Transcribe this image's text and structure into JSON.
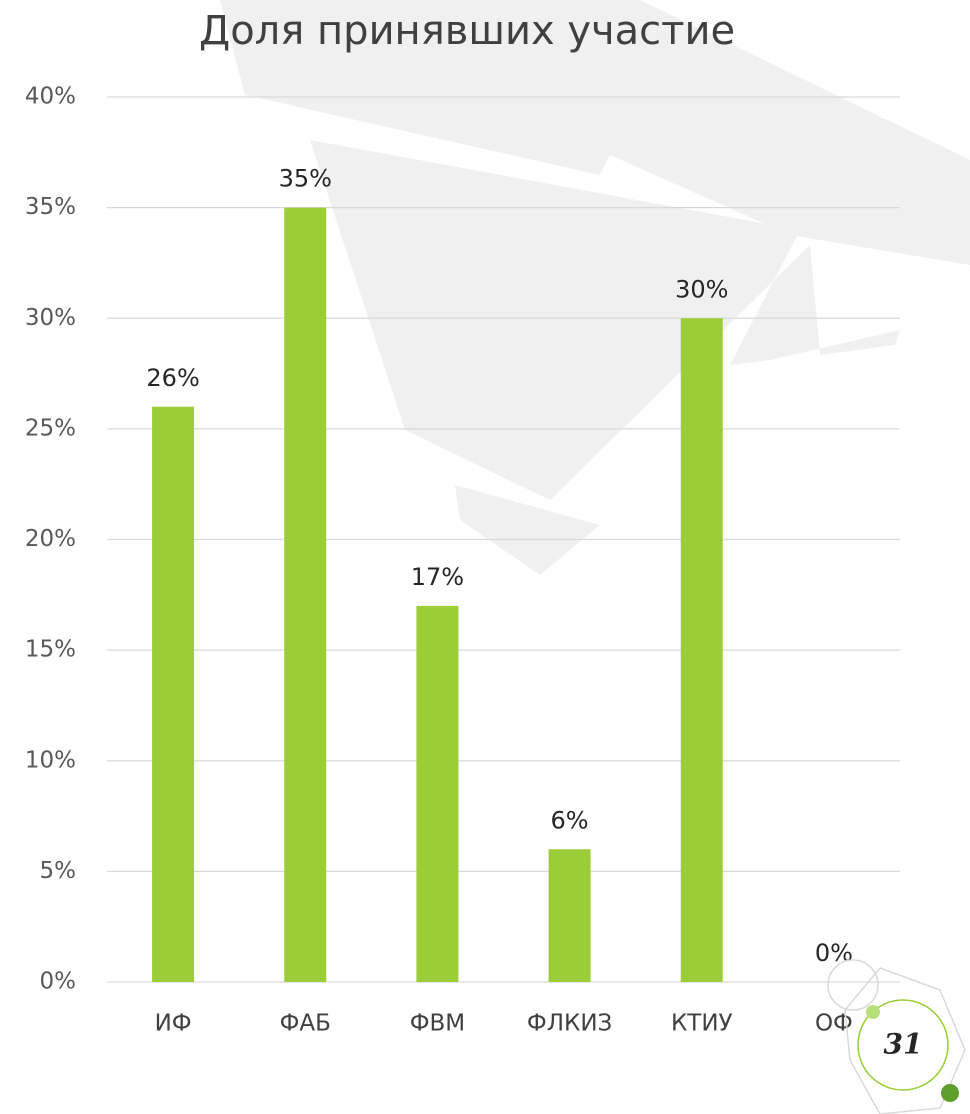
{
  "chart_data": {
    "type": "bar",
    "title": "Доля принявших участие",
    "categories": [
      "ИФ",
      "ФАБ",
      "ФВМ",
      "ФЛКИЗ",
      "КТИУ",
      "ОФ"
    ],
    "values": [
      26,
      35,
      17,
      6,
      30,
      0
    ],
    "value_labels": [
      "26%",
      "35%",
      "17%",
      "6%",
      "30%",
      "0%"
    ],
    "color": "#9acd37",
    "ylim": [
      0,
      40
    ],
    "yticks": [
      {
        "value": 0,
        "label": "0%"
      },
      {
        "value": 5,
        "label": "5%"
      },
      {
        "value": 10,
        "label": "10%"
      },
      {
        "value": 15,
        "label": "15%"
      },
      {
        "value": 20,
        "label": "20%"
      },
      {
        "value": 25,
        "label": "25%"
      },
      {
        "value": 30,
        "label": "30%"
      },
      {
        "value": 35,
        "label": "35%"
      },
      {
        "value": 40,
        "label": "40%"
      }
    ],
    "grid": true
  },
  "slide": {
    "page_number": "31"
  }
}
